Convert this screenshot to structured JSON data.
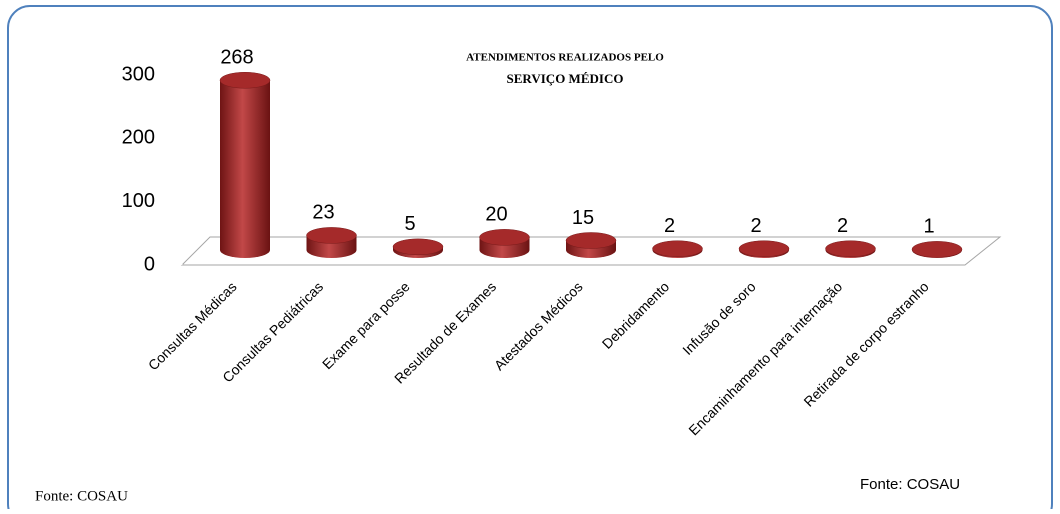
{
  "chart_data": {
    "type": "bar3d",
    "title": [
      "ATENDIMENTOS REALIZADOS PELO",
      "SERVIÇO MÉDICO"
    ],
    "categories": [
      "Consultas Médicas",
      "Consultas Pediátricas",
      "Exame para posse",
      "Resultado de Exames",
      "Atestados Médicos",
      "Debridamento",
      "Infusão de soro",
      "Encaminhamento para internação",
      "Retirada de corpo estranho"
    ],
    "values": [
      268,
      23,
      5,
      20,
      15,
      2,
      2,
      2,
      1
    ],
    "color": "#a52a2a",
    "ylim": [
      0,
      300
    ],
    "yticks": [
      0,
      100,
      200,
      300
    ],
    "sources": [
      "Fonte: COSAU",
      "Fonte: COSAU"
    ]
  }
}
